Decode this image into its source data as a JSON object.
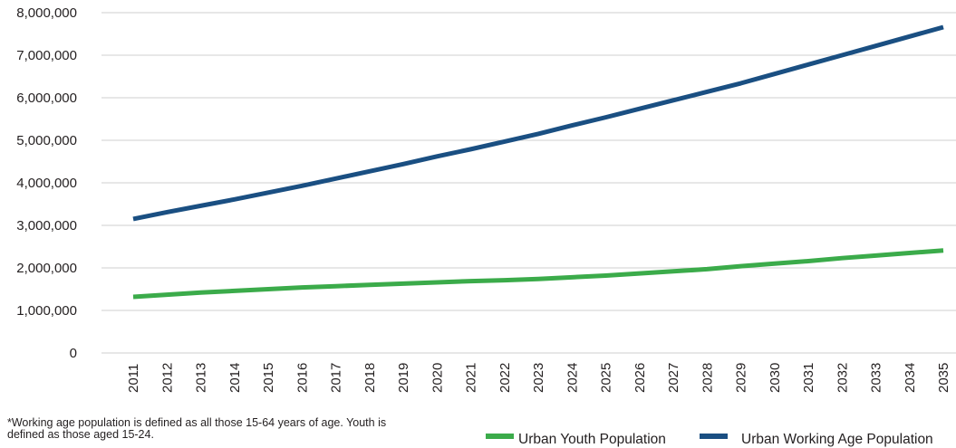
{
  "chart_data": {
    "type": "line",
    "x": [
      2011,
      2012,
      2013,
      2014,
      2015,
      2016,
      2017,
      2018,
      2019,
      2020,
      2021,
      2022,
      2023,
      2024,
      2025,
      2026,
      2027,
      2028,
      2029,
      2030,
      2031,
      2032,
      2033,
      2034,
      2035
    ],
    "x_tick_labels": [
      "2011",
      "2012",
      "2013",
      "2014",
      "2015",
      "2016",
      "2017",
      "2018",
      "2019",
      "2020",
      "2021",
      "2022",
      "2023",
      "2024",
      "2025",
      "2026",
      "2027",
      "2028",
      "2029",
      "2030",
      "2031",
      "2032",
      "2033",
      "2034",
      "2035"
    ],
    "y_ticks": [
      0,
      1000000,
      2000000,
      3000000,
      4000000,
      5000000,
      6000000,
      7000000,
      8000000
    ],
    "y_tick_labels": [
      "0",
      "1,000,000",
      "2,000,000",
      "3,000,000",
      "4,000,000",
      "5,000,000",
      "6,000,000",
      "7,000,000",
      "8,000,000"
    ],
    "ylim": [
      0,
      8000000
    ],
    "grid": "horizontal",
    "legend_position": "bottom-right",
    "series": [
      {
        "name": "Urban Youth Population",
        "color": "#3bab4a",
        "values": [
          1320000,
          1370000,
          1420000,
          1460000,
          1500000,
          1540000,
          1570000,
          1600000,
          1630000,
          1660000,
          1690000,
          1710000,
          1740000,
          1780000,
          1820000,
          1870000,
          1920000,
          1970000,
          2040000,
          2100000,
          2160000,
          2230000,
          2290000,
          2350000,
          2410000
        ]
      },
      {
        "name": "Urban Working Age Population",
        "color": "#1a4f82",
        "values": [
          3150000,
          3310000,
          3460000,
          3610000,
          3770000,
          3930000,
          4100000,
          4270000,
          4440000,
          4620000,
          4790000,
          4970000,
          5150000,
          5350000,
          5540000,
          5740000,
          5940000,
          6140000,
          6340000,
          6560000,
          6780000,
          7000000,
          7220000,
          7440000,
          7660000
        ]
      }
    ]
  },
  "footnote": {
    "line1": "*Working age population is defined as all those 15-64 years of age. Youth is",
    "line2": "defined as those aged 15-24."
  }
}
